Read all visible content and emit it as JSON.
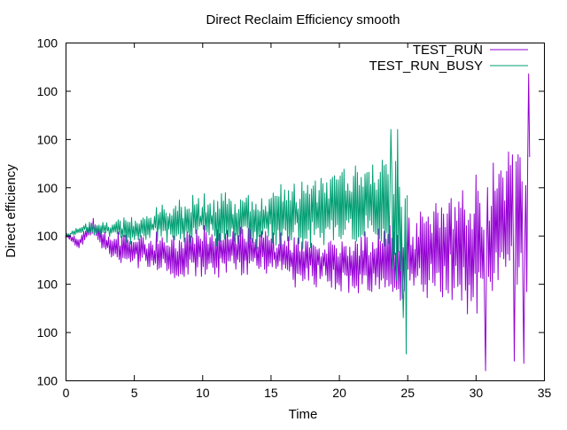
{
  "chart_data": {
    "type": "line",
    "title": "Direct Reclaim Efficiency smooth",
    "xlabel": "Time",
    "ylabel": "Direct efficiency",
    "xlim": [
      0,
      35
    ],
    "ylim": [
      0,
      7
    ],
    "x_ticks": [
      0,
      5,
      10,
      15,
      20,
      25,
      30,
      35
    ],
    "x_tick_labels": [
      "0",
      "5",
      "10",
      "15",
      "20",
      "25",
      "30",
      "35"
    ],
    "y_ticks": [
      0,
      1,
      2,
      3,
      4,
      5,
      6,
      7
    ],
    "y_tick_labels": [
      "100",
      "100",
      "100",
      "100",
      "100",
      "100",
      "100",
      "100"
    ],
    "grid": false,
    "legend_position": "top-right",
    "series": [
      {
        "name": "TEST_RUN",
        "color": "#9400d3",
        "keypoints": [
          [
            0,
            3.0
          ],
          [
            1,
            2.85
          ],
          [
            2,
            3.2
          ],
          [
            3,
            2.8
          ],
          [
            5,
            2.7
          ],
          [
            8,
            2.55
          ],
          [
            10,
            2.65
          ],
          [
            12,
            2.7
          ],
          [
            15,
            2.6
          ],
          [
            18,
            2.45
          ],
          [
            20,
            2.4
          ],
          [
            22,
            2.4
          ],
          [
            24,
            2.5
          ],
          [
            25,
            2.55
          ],
          [
            27,
            2.7
          ],
          [
            30,
            2.8
          ],
          [
            32,
            3.1
          ],
          [
            33,
            3.4
          ],
          [
            34,
            3.2
          ]
        ],
        "noise": [
          [
            0,
            0.05
          ],
          [
            2,
            0.18
          ],
          [
            5,
            0.35
          ],
          [
            10,
            0.5
          ],
          [
            15,
            0.45
          ],
          [
            20,
            0.55
          ],
          [
            25,
            0.8
          ],
          [
            30,
            1.3
          ],
          [
            33.5,
            1.6
          ],
          [
            34,
            1.2
          ]
        ],
        "spikes": [
          [
            33.9,
            6.35
          ],
          [
            34.05,
            5.5
          ],
          [
            33.5,
            0.35
          ],
          [
            30.7,
            0.2
          ],
          [
            32.8,
            0.4
          ]
        ]
      },
      {
        "name": "TEST_RUN_BUSY",
        "color": "#009e73",
        "keypoints": [
          [
            0,
            3.0
          ],
          [
            1.3,
            3.15
          ],
          [
            3,
            3.15
          ],
          [
            5,
            3.1
          ],
          [
            7,
            3.25
          ],
          [
            10,
            3.35
          ],
          [
            13,
            3.3
          ],
          [
            15,
            3.35
          ],
          [
            18,
            3.5
          ],
          [
            20,
            3.6
          ],
          [
            22,
            3.7
          ],
          [
            23.5,
            3.5
          ],
          [
            24,
            3.2
          ],
          [
            24.5,
            3.0
          ],
          [
            25,
            2.7
          ]
        ],
        "noise": [
          [
            0,
            0.03
          ],
          [
            1.3,
            0.1
          ],
          [
            5,
            0.25
          ],
          [
            10,
            0.5
          ],
          [
            15,
            0.55
          ],
          [
            20,
            0.75
          ],
          [
            23,
            0.9
          ],
          [
            24.5,
            1.4
          ],
          [
            25,
            1.6
          ]
        ],
        "spikes": [
          [
            24.95,
            0.55
          ],
          [
            23.8,
            5.2
          ],
          [
            24.3,
            5.2
          ],
          [
            24.7,
            1.3
          ]
        ]
      }
    ]
  }
}
